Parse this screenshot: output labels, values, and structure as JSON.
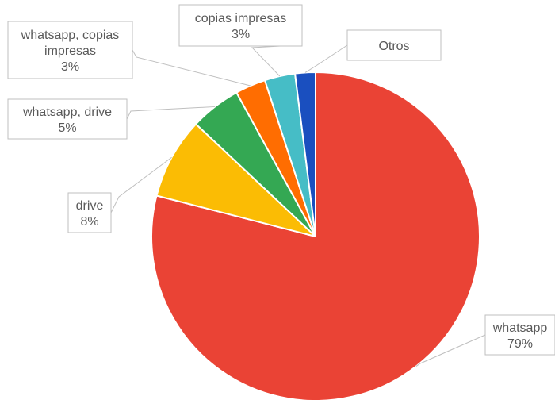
{
  "chart_data": {
    "type": "pie",
    "title": "",
    "categories": [
      "whatsapp",
      "drive",
      "whatsapp, drive",
      "whatsapp, copias impresas",
      "copias impresas",
      "Otros"
    ],
    "values": [
      79,
      8,
      5,
      3,
      3,
      2
    ],
    "labels": [
      [
        "whatsapp",
        "79%"
      ],
      [
        "drive",
        "8%"
      ],
      [
        "whatsapp, drive",
        "5%"
      ],
      [
        "whatsapp, copias",
        "impresas",
        "3%"
      ],
      [
        "copias impresas",
        "3%"
      ],
      [
        "Otros"
      ]
    ],
    "colors": [
      "#EA4335",
      "#FBBC04",
      "#34A853",
      "#FF6D01",
      "#46BDC6",
      "#1A4FBF"
    ],
    "start_angle_deg": 0,
    "direction": "clockwise",
    "legend": "none",
    "label_style": "callout"
  }
}
